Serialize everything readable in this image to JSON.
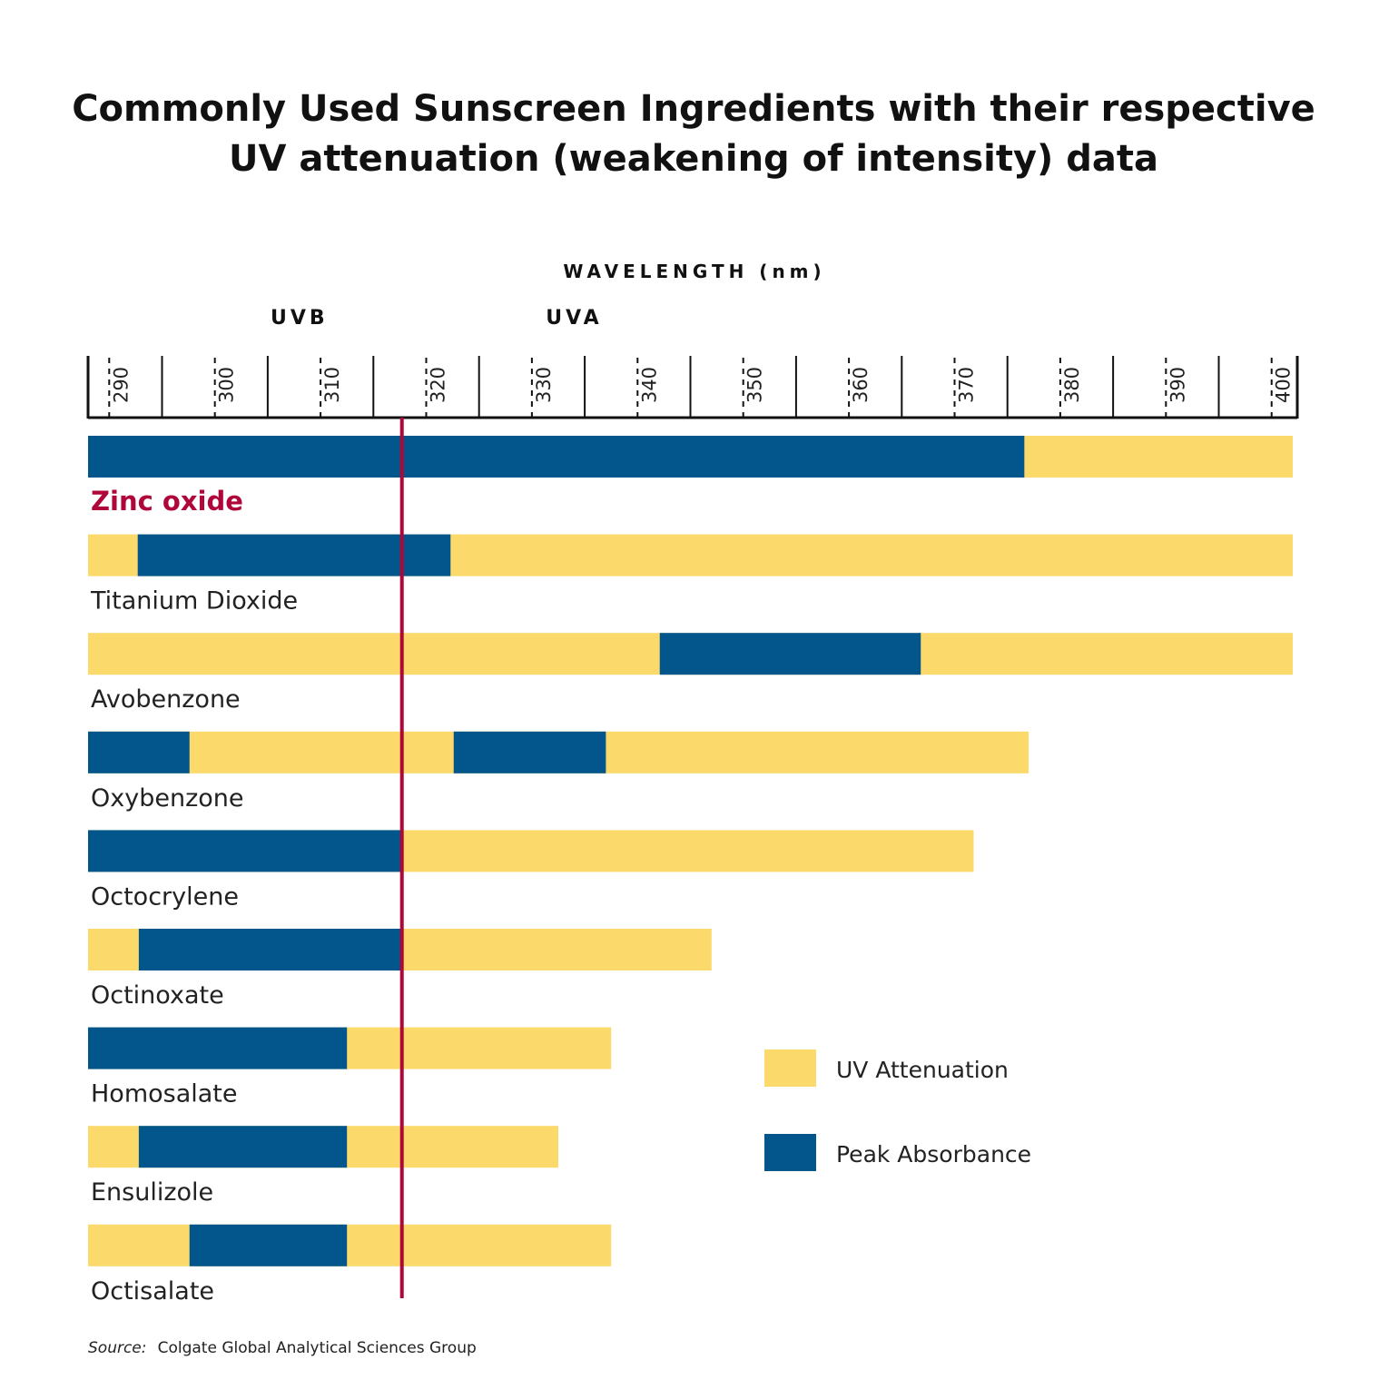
{
  "chart_data": {
    "type": "bar",
    "orientation": "horizontal",
    "title_line1": "Commonly Used Sunscreen Ingredients with their respective",
    "title_line2": "UV attenuation (weakening of intensity) data",
    "xlabel": "WAVELENGTH (nm)",
    "xlim": [
      288,
      402
    ],
    "xticks": [
      290,
      300,
      310,
      320,
      330,
      340,
      350,
      360,
      370,
      380,
      390,
      400
    ],
    "regions": [
      {
        "label": "UVB",
        "center": 308
      },
      {
        "label": "UVA",
        "center": 334
      }
    ],
    "reference_line": {
      "value": 317.7,
      "color": "#b0073a"
    },
    "legend": [
      {
        "label": "UV Attenuation",
        "color": "#fcd96b"
      },
      {
        "label": "Peak Absorbance",
        "color": "#02568c"
      }
    ],
    "legend_placement": "right",
    "bars": [
      {
        "label": "Zinc oxide",
        "highlight": true,
        "attenuation": [
          [
            288,
            402
          ]
        ],
        "peak": [
          [
            288,
            376.6
          ]
        ]
      },
      {
        "label": "Titanium Dioxide",
        "highlight": false,
        "attenuation": [
          [
            288,
            402
          ]
        ],
        "peak": [
          [
            292.7,
            322.3
          ]
        ]
      },
      {
        "label": "Avobenzone",
        "highlight": false,
        "attenuation": [
          [
            288,
            402
          ]
        ],
        "peak": [
          [
            342.1,
            366.8
          ]
        ]
      },
      {
        "label": "Oxybenzone",
        "highlight": false,
        "attenuation": [
          [
            288,
            377
          ]
        ],
        "peak": [
          [
            288,
            297.6
          ],
          [
            322.6,
            337
          ]
        ]
      },
      {
        "label": "Octocrylene",
        "highlight": false,
        "attenuation": [
          [
            288,
            371.8
          ]
        ],
        "peak": [
          [
            288,
            317.7
          ]
        ]
      },
      {
        "label": "Octinoxate",
        "highlight": false,
        "attenuation": [
          [
            288,
            347
          ]
        ],
        "peak": [
          [
            292.8,
            317.7
          ]
        ]
      },
      {
        "label": "Homosalate",
        "highlight": false,
        "attenuation": [
          [
            288,
            337.5
          ]
        ],
        "peak": [
          [
            288,
            312.5
          ]
        ]
      },
      {
        "label": "Ensulizole",
        "highlight": false,
        "attenuation": [
          [
            288,
            332.5
          ]
        ],
        "peak": [
          [
            292.8,
            312.5
          ]
        ]
      },
      {
        "label": "Octisalate",
        "highlight": false,
        "attenuation": [
          [
            288,
            337.5
          ]
        ],
        "peak": [
          [
            297.6,
            312.5
          ]
        ]
      }
    ]
  },
  "source": {
    "label": "Source:",
    "text": "Colgate Global Analytical Sciences Group"
  }
}
